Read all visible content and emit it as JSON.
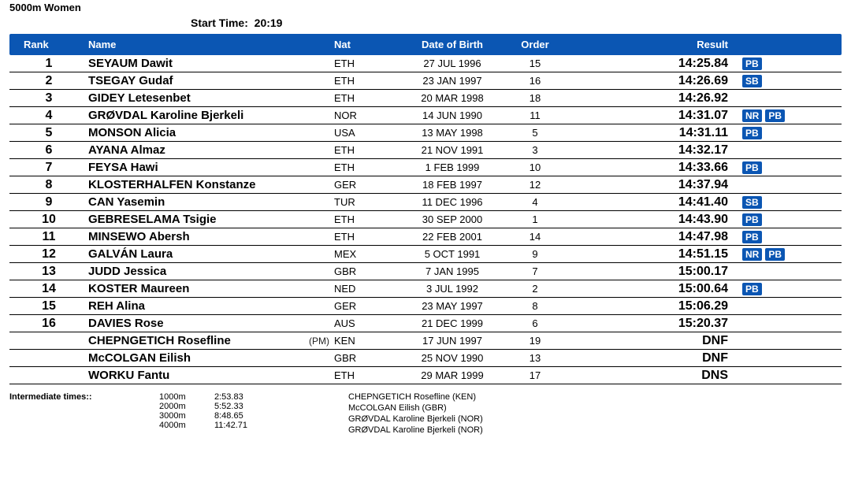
{
  "title": "5000m Women",
  "start_time_label": "Start Time:",
  "start_time_value": "20:19",
  "colors": {
    "header_bg": "#0b56b3",
    "header_fg": "#ffffff",
    "badge_bg": "#0b56b3",
    "badge_fg": "#ffffff",
    "row_border": "#000000",
    "background": "#ffffff"
  },
  "columns": {
    "rank": "Rank",
    "name": "Name",
    "nat": "Nat",
    "dob": "Date of Birth",
    "order": "Order",
    "result": "Result"
  },
  "results": [
    {
      "rank": "1",
      "name": "SEYAUM Dawit",
      "note": "",
      "nat": "ETH",
      "dob": "27 JUL 1996",
      "order": "15",
      "result": "14:25.84",
      "badges": [
        "PB"
      ]
    },
    {
      "rank": "2",
      "name": "TSEGAY Gudaf",
      "note": "",
      "nat": "ETH",
      "dob": "23 JAN 1997",
      "order": "16",
      "result": "14:26.69",
      "badges": [
        "SB"
      ]
    },
    {
      "rank": "3",
      "name": "GIDEY Letesenbet",
      "note": "",
      "nat": "ETH",
      "dob": "20 MAR 1998",
      "order": "18",
      "result": "14:26.92",
      "badges": []
    },
    {
      "rank": "4",
      "name": "GRØVDAL Karoline Bjerkeli",
      "note": "",
      "nat": "NOR",
      "dob": "14 JUN 1990",
      "order": "11",
      "result": "14:31.07",
      "badges": [
        "NR",
        "PB"
      ]
    },
    {
      "rank": "5",
      "name": "MONSON Alicia",
      "note": "",
      "nat": "USA",
      "dob": "13 MAY 1998",
      "order": "5",
      "result": "14:31.11",
      "badges": [
        "PB"
      ]
    },
    {
      "rank": "6",
      "name": "AYANA Almaz",
      "note": "",
      "nat": "ETH",
      "dob": "21 NOV 1991",
      "order": "3",
      "result": "14:32.17",
      "badges": []
    },
    {
      "rank": "7",
      "name": "FEYSA Hawi",
      "note": "",
      "nat": "ETH",
      "dob": "1 FEB 1999",
      "order": "10",
      "result": "14:33.66",
      "badges": [
        "PB"
      ]
    },
    {
      "rank": "8",
      "name": "KLOSTERHALFEN Konstanze",
      "note": "",
      "nat": "GER",
      "dob": "18 FEB 1997",
      "order": "12",
      "result": "14:37.94",
      "badges": []
    },
    {
      "rank": "9",
      "name": "CAN Yasemin",
      "note": "",
      "nat": "TUR",
      "dob": "11 DEC 1996",
      "order": "4",
      "result": "14:41.40",
      "badges": [
        "SB"
      ]
    },
    {
      "rank": "10",
      "name": "GEBRESELAMA Tsigie",
      "note": "",
      "nat": "ETH",
      "dob": "30 SEP 2000",
      "order": "1",
      "result": "14:43.90",
      "badges": [
        "PB"
      ]
    },
    {
      "rank": "11",
      "name": "MINSEWO Abersh",
      "note": "",
      "nat": "ETH",
      "dob": "22 FEB 2001",
      "order": "14",
      "result": "14:47.98",
      "badges": [
        "PB"
      ]
    },
    {
      "rank": "12",
      "name": "GALVÁN Laura",
      "note": "",
      "nat": "MEX",
      "dob": "5 OCT 1991",
      "order": "9",
      "result": "14:51.15",
      "badges": [
        "NR",
        "PB"
      ]
    },
    {
      "rank": "13",
      "name": "JUDD Jessica",
      "note": "",
      "nat": "GBR",
      "dob": "7 JAN 1995",
      "order": "7",
      "result": "15:00.17",
      "badges": []
    },
    {
      "rank": "14",
      "name": "KOSTER Maureen",
      "note": "",
      "nat": "NED",
      "dob": "3 JUL 1992",
      "order": "2",
      "result": "15:00.64",
      "badges": [
        "PB"
      ]
    },
    {
      "rank": "15",
      "name": "REH Alina",
      "note": "",
      "nat": "GER",
      "dob": "23 MAY 1997",
      "order": "8",
      "result": "15:06.29",
      "badges": []
    },
    {
      "rank": "16",
      "name": "DAVIES Rose",
      "note": "",
      "nat": "AUS",
      "dob": "21 DEC 1999",
      "order": "6",
      "result": "15:20.37",
      "badges": []
    },
    {
      "rank": "",
      "name": "CHEPNGETICH Rosefline",
      "note": "(PM)",
      "nat": "KEN",
      "dob": "17 JUN 1997",
      "order": "19",
      "result": "DNF",
      "badges": []
    },
    {
      "rank": "",
      "name": "McCOLGAN Eilish",
      "note": "",
      "nat": "GBR",
      "dob": "25 NOV 1990",
      "order": "13",
      "result": "DNF",
      "badges": []
    },
    {
      "rank": "",
      "name": "WORKU Fantu",
      "note": "",
      "nat": "ETH",
      "dob": "29 MAR 1999",
      "order": "17",
      "result": "DNS",
      "badges": []
    }
  ],
  "intermediate_label": "Intermediate times::",
  "splits": [
    {
      "dist": "1000m",
      "time": "2:53.83",
      "leader": "CHEPNGETICH Rosefline (KEN)"
    },
    {
      "dist": "2000m",
      "time": "5:52.33",
      "leader": "McCOLGAN Eilish (GBR)"
    },
    {
      "dist": "3000m",
      "time": "8:48.65",
      "leader": "GRØVDAL Karoline Bjerkeli (NOR)"
    },
    {
      "dist": "4000m",
      "time": "11:42.71",
      "leader": "GRØVDAL Karoline Bjerkeli (NOR)"
    }
  ]
}
